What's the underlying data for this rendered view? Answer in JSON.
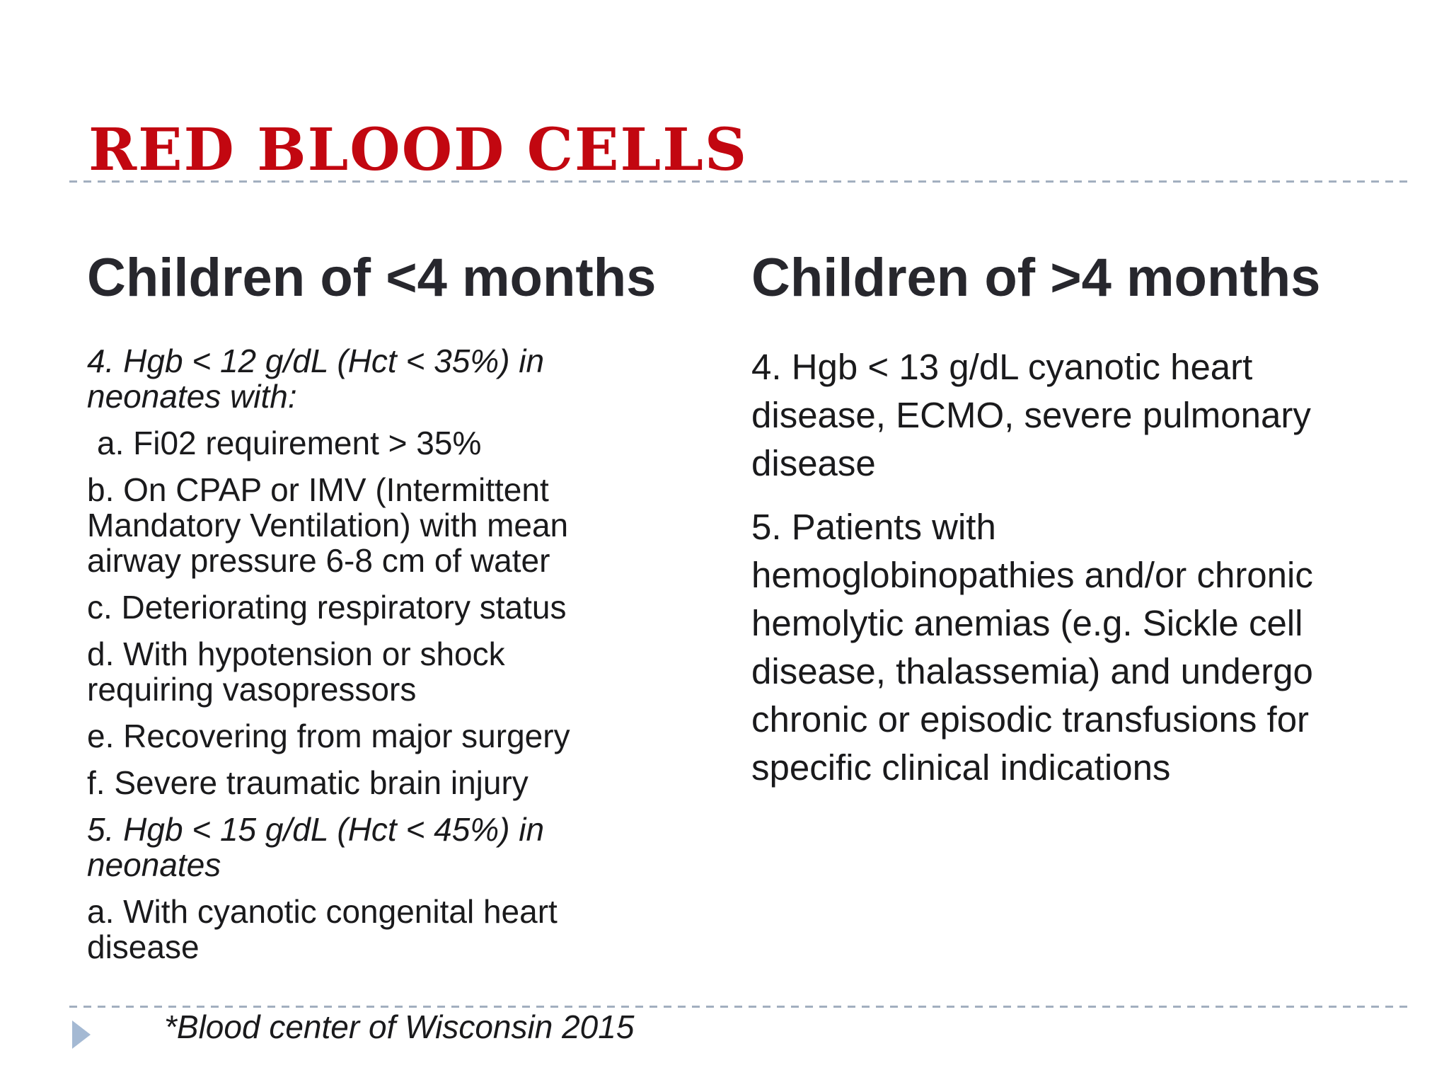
{
  "slide": {
    "title": "RED BLOOD CELLS",
    "colors": {
      "title_red": "#c20710",
      "dashed_rule": "#a2afbf",
      "header_text": "#27272d",
      "body_text": "#1a1a1c",
      "triangle_bullet": "#a4b9d3"
    },
    "columns": {
      "left": {
        "header": "Children of <4 months",
        "items": [
          {
            "text": "4. Hgb < 12 g/dL (Hct < 35%) in neonates with:",
            "style": "italic",
            "indent": false
          },
          {
            "text": "a. Fi02 requirement > 35%",
            "style": "normal",
            "indent": true
          },
          {
            "text": "b. On CPAP or IMV (Intermittent Mandatory Ventilation) with mean airway pressure 6-8 cm of water",
            "style": "normal",
            "indent": false
          },
          {
            "text": "c. Deteriorating respiratory status",
            "style": "normal",
            "indent": false
          },
          {
            "text": "d. With hypotension or shock requiring vasopressors",
            "style": "normal",
            "indent": false
          },
          {
            "text": "e. Recovering from major surgery",
            "style": "normal",
            "indent": false
          },
          {
            "text": "f. Severe traumatic brain injury",
            "style": "normal",
            "indent": false
          },
          {
            "text": "5. Hgb < 15 g/dL (Hct < 45%) in neonates",
            "style": "italic",
            "indent": false
          },
          {
            "text": "a. With cyanotic congenital heart disease",
            "style": "normal",
            "indent": false
          }
        ]
      },
      "right": {
        "header": "Children of >4 months",
        "items": [
          {
            "text": "4. Hgb < 13 g/dL cyanotic heart disease, ECMO, severe pulmonary disease",
            "style": "normal",
            "indent": false
          },
          {
            "text": "5. Patients with hemoglobinopathies and/or chronic hemolytic anemias (e.g. Sickle cell disease, thalassemia) and undergo chronic or episodic transfusions for specific clinical indications",
            "style": "normal",
            "indent": false
          }
        ]
      }
    },
    "footer": {
      "citation": "*Blood center of Wisconsin 2015"
    }
  }
}
